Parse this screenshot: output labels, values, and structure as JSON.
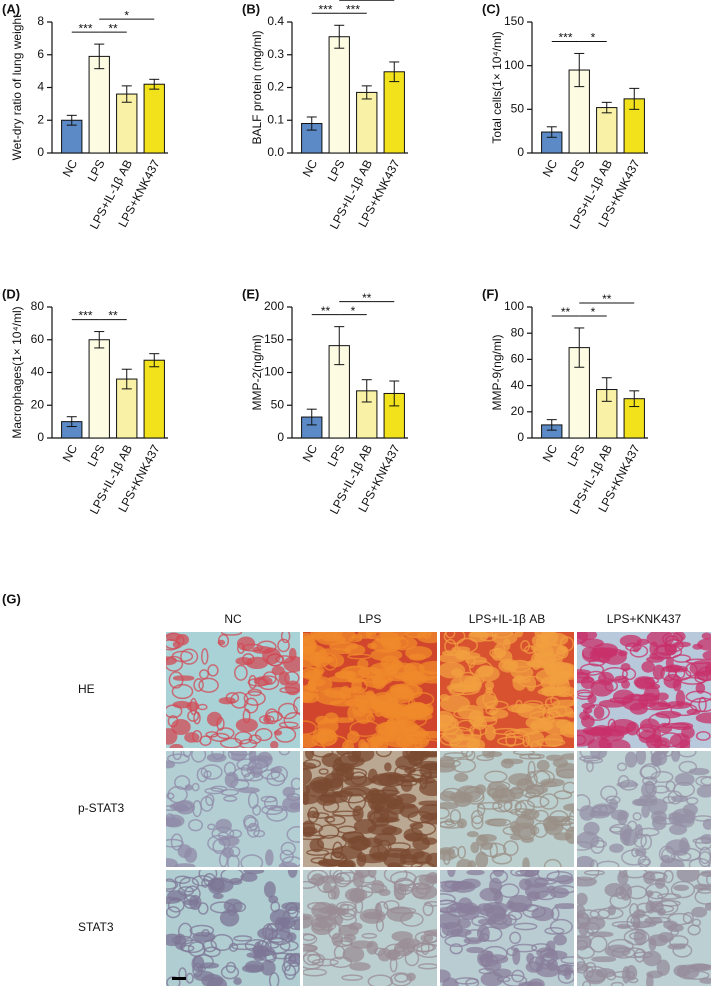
{
  "chart_data": [
    {
      "type": "bar",
      "panel": "(A)",
      "ylabel": "Wet-dry ratio of lung weight",
      "categories": [
        "NC",
        "LPS",
        "LPS+IL-1β AB",
        "LPS+KNK437"
      ],
      "values": [
        2.0,
        5.9,
        3.6,
        4.2
      ],
      "errors": [
        0.3,
        0.75,
        0.5,
        0.3
      ],
      "colors": [
        "#5b8ac6",
        "#fdfbe2",
        "#f8f1a6",
        "#f2e21c"
      ],
      "ylim": [
        0,
        8
      ],
      "yticks": [
        0,
        2,
        4,
        6,
        8
      ],
      "annotations": [
        {
          "label": "***",
          "between": [
            0,
            1
          ]
        },
        {
          "label": "**",
          "between": [
            1,
            2
          ]
        },
        {
          "label": "*",
          "between": [
            1,
            3
          ]
        }
      ]
    },
    {
      "type": "bar",
      "panel": "(B)",
      "ylabel": "BALF protein (mg/ml)",
      "categories": [
        "NC",
        "LPS",
        "LPS+IL-1β AB",
        "LPS+KNK437"
      ],
      "values": [
        0.09,
        0.355,
        0.185,
        0.248
      ],
      "errors": [
        0.02,
        0.035,
        0.02,
        0.03
      ],
      "colors": [
        "#5b8ac6",
        "#fdfbe2",
        "#f8f1a6",
        "#f2e21c"
      ],
      "ylim": [
        0,
        0.4
      ],
      "yticks": [
        {
          "value": 0,
          "label": "0.0"
        },
        0.1,
        0.2,
        0.3,
        0.4
      ],
      "annotations": [
        {
          "label": "***",
          "between": [
            0,
            1
          ]
        },
        {
          "label": "***",
          "between": [
            1,
            2
          ]
        },
        {
          "label": "**",
          "between": [
            1,
            3
          ]
        }
      ]
    },
    {
      "type": "bar",
      "panel": "(C)",
      "ylabel": "Total cells(1× 10⁴/ml)",
      "categories": [
        "NC",
        "LPS",
        "LPS+IL-1β AB",
        "LPS+KNK437"
      ],
      "values": [
        24,
        95,
        52,
        62
      ],
      "errors": [
        6,
        19,
        6,
        12
      ],
      "colors": [
        "#5b8ac6",
        "#fdfbe2",
        "#f8f1a6",
        "#f2e21c"
      ],
      "ylim": [
        0,
        150
      ],
      "yticks": [
        0,
        50,
        100,
        150
      ],
      "annotations": [
        {
          "label": "***",
          "between": [
            0,
            1
          ]
        },
        {
          "label": "*",
          "between": [
            1,
            2
          ]
        }
      ]
    },
    {
      "type": "bar",
      "panel": "(D)",
      "ylabel": "Macrophages(1× 10⁴/ml)",
      "categories": [
        "NC",
        "LPS",
        "LPS+IL-1β AB",
        "LPS+KNK437"
      ],
      "values": [
        10,
        60,
        36,
        47.5
      ],
      "errors": [
        3,
        5,
        6,
        4
      ],
      "colors": [
        "#5b8ac6",
        "#fdfbe2",
        "#f8f1a6",
        "#f2e21c"
      ],
      "ylim": [
        0,
        80
      ],
      "yticks": [
        0,
        20,
        40,
        60,
        80
      ],
      "annotations": [
        {
          "label": "***",
          "between": [
            0,
            1
          ]
        },
        {
          "label": "**",
          "between": [
            1,
            2
          ]
        }
      ]
    },
    {
      "type": "bar",
      "panel": "(E)",
      "ylabel": "MMP-2(ng/ml)",
      "categories": [
        "NC",
        "LPS",
        "LPS+IL-1β AB",
        "LPS+KNK437"
      ],
      "values": [
        32,
        141,
        72,
        68
      ],
      "errors": [
        12,
        29,
        17,
        19
      ],
      "colors": [
        "#5b8ac6",
        "#fdfbe2",
        "#f8f1a6",
        "#f2e21c"
      ],
      "ylim": [
        0,
        200
      ],
      "yticks": [
        0,
        50,
        100,
        150,
        200
      ],
      "annotations": [
        {
          "label": "**",
          "between": [
            0,
            1
          ]
        },
        {
          "label": "*",
          "between": [
            1,
            2
          ]
        },
        {
          "label": "**",
          "between": [
            1,
            3
          ]
        }
      ]
    },
    {
      "type": "bar",
      "panel": "(F)",
      "ylabel": "MMP-9(ng/ml)",
      "categories": [
        "NC",
        "LPS",
        "LPS+IL-1β AB",
        "LPS+KNK437"
      ],
      "values": [
        10,
        69,
        37,
        30
      ],
      "errors": [
        4,
        15,
        9,
        6
      ],
      "colors": [
        "#5b8ac6",
        "#fdfbe2",
        "#f8f1a6",
        "#f2e21c"
      ],
      "ylim": [
        0,
        100
      ],
      "yticks": [
        0,
        20,
        40,
        60,
        80,
        100
      ],
      "annotations": [
        {
          "label": "**",
          "between": [
            0,
            1
          ]
        },
        {
          "label": "*",
          "between": [
            1,
            2
          ]
        },
        {
          "label": "**",
          "between": [
            1,
            3
          ]
        }
      ]
    }
  ],
  "panel_g": {
    "label": "(G)",
    "columns": [
      "NC",
      "LPS",
      "LPS+IL-1β AB",
      "LPS+KNK437"
    ],
    "rows": [
      "HE",
      "p-STAT3",
      "STAT3"
    ]
  }
}
